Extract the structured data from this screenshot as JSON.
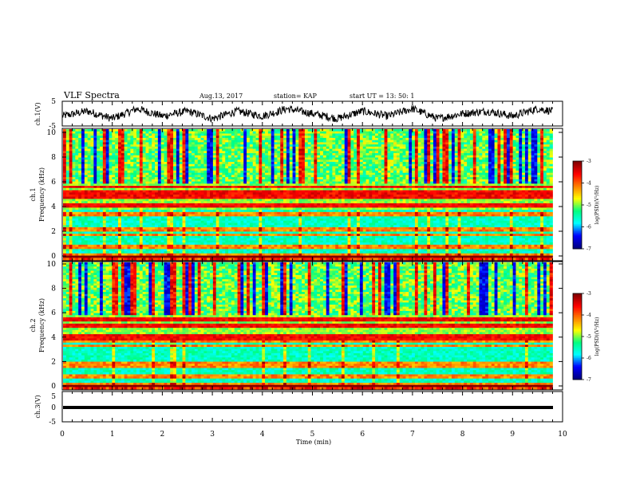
{
  "header": {
    "title": "VLF Spectra",
    "date": "Aug.13, 2017",
    "station": "station= KAP",
    "start_ut": "start  UT  =   13: 50: 1"
  },
  "colors": {
    "trace": "#000000",
    "colormap": [
      "#000080",
      "#0000ff",
      "#00ffff",
      "#00ff80",
      "#ffff00",
      "#ff8000",
      "#ff0000",
      "#800000"
    ],
    "background": "#ffffff"
  },
  "chart_data": [
    {
      "type": "line",
      "ylabel": "ch.1(V)",
      "ylim": [
        -5,
        5
      ],
      "yticks": [
        "5",
        "-5"
      ],
      "xlim": [
        0,
        10
      ],
      "description_values": {
        "x_min": [
          0,
          0.5,
          1,
          1.5,
          2,
          2.5,
          3,
          3.5,
          4,
          4.5,
          5,
          5.5,
          6,
          6.5,
          7,
          7.5,
          8,
          8.5,
          9,
          9.5,
          9.8
        ],
        "y_volts": [
          -1,
          1,
          -2,
          2,
          -1,
          1,
          -2,
          1,
          -1,
          2,
          0,
          -2,
          1,
          -1,
          2,
          -2,
          0,
          1,
          -1,
          2,
          1
        ]
      }
    },
    {
      "type": "heatmap",
      "ylabel": "ch.1\nFrequency (kHz)",
      "ylabel_lines": [
        "ch.1",
        "Frequency (kHz)"
      ],
      "ylim": [
        0,
        10
      ],
      "yticks": [
        "0",
        "2",
        "4",
        "6",
        "8",
        "10"
      ],
      "xlim": [
        0,
        9.8
      ],
      "colorbar": {
        "label": "log(PSD)(V²/Hz)",
        "range": [
          -7,
          -3
        ],
        "ticks": [
          "-3",
          "-4",
          "-5",
          "-6",
          "-7"
        ]
      },
      "bands_khz": [
        0.3,
        1.0,
        1.9,
        2.3,
        3.5,
        4.2,
        4.8,
        5.2,
        5.6
      ]
    },
    {
      "type": "heatmap",
      "ylabel": "ch.2\nFrequency (kHz)",
      "ylabel_lines": [
        "ch.2",
        "Frequency (kHz)"
      ],
      "ylim": [
        0,
        10
      ],
      "yticks": [
        "0",
        "2",
        "4",
        "6",
        "8",
        "10"
      ],
      "xlim": [
        0,
        9.8
      ],
      "colorbar": {
        "label": "log(PSD)(V²/Hz)",
        "range": [
          -7,
          -3
        ],
        "ticks": [
          "-3",
          "-4",
          "-5",
          "-6",
          "-7"
        ]
      },
      "bands_khz": [
        0.3,
        1.0,
        1.8,
        2.1,
        3.4,
        3.8,
        4.2,
        5.0,
        5.5
      ]
    },
    {
      "type": "line",
      "ylabel": "ch.3(V)",
      "ylim": [
        -5,
        5
      ],
      "yticks": [
        "5",
        "0",
        "-5"
      ],
      "xlim": [
        0,
        10
      ],
      "xlabel": "Time (min)",
      "xticks": [
        "0",
        "1",
        "2",
        "3",
        "4",
        "5",
        "6",
        "7",
        "8",
        "9",
        "10"
      ],
      "constant_value_volts": -1
    }
  ]
}
